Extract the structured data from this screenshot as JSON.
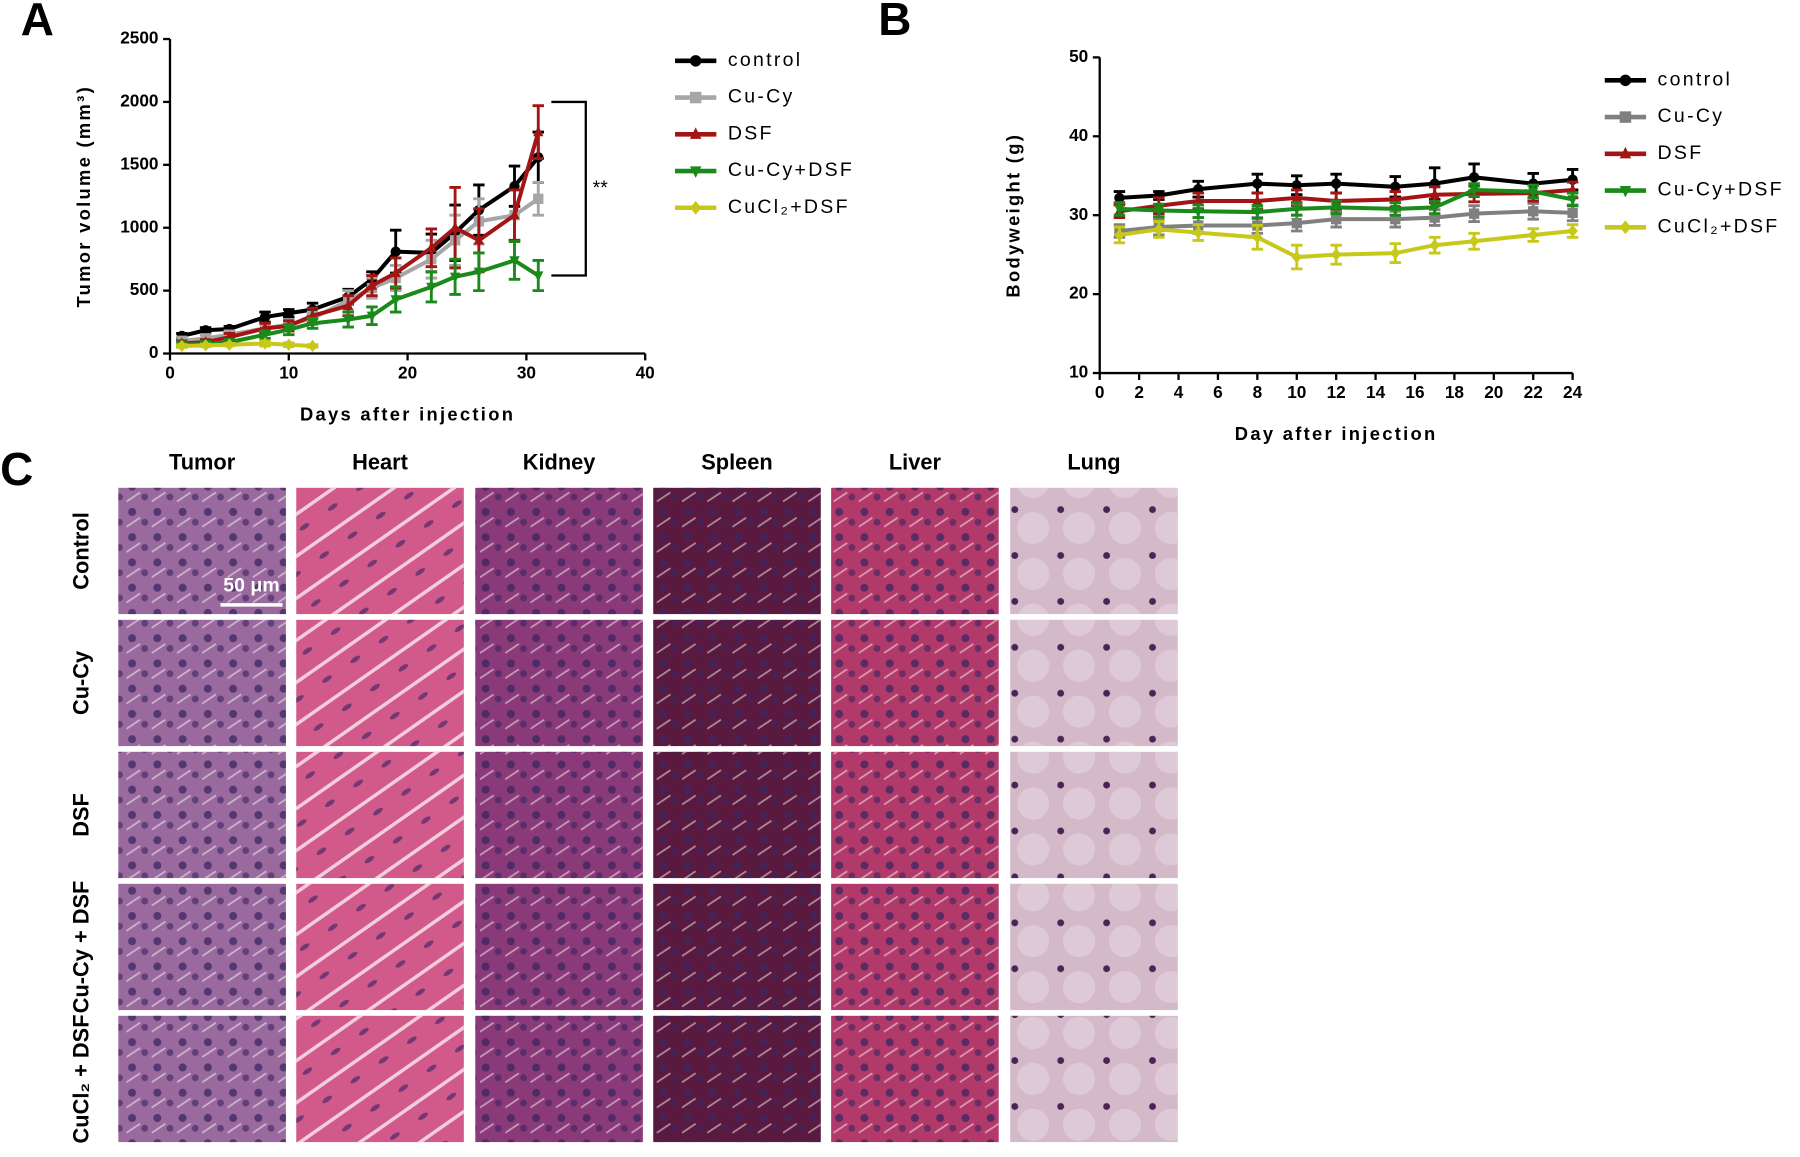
{
  "panels": [
    "A",
    "B",
    "C"
  ],
  "chart_data": [
    {
      "type": "line",
      "xlabel": "Days after injection",
      "ylabel": "Tumor volume (mm³)",
      "xlim": [
        0,
        40
      ],
      "xticks": [
        0,
        10,
        20,
        30,
        40
      ],
      "ylim": [
        0,
        2500
      ],
      "yticks": [
        0,
        500,
        1000,
        1500,
        2000,
        2500
      ],
      "annotation": "**",
      "series": [
        {
          "name": "control",
          "color": "#000000",
          "marker": "circle",
          "x": [
            1,
            3,
            5,
            8,
            10,
            12,
            15,
            17,
            19,
            22,
            24,
            26,
            29,
            31
          ],
          "values": [
            140,
            185,
            195,
            290,
            320,
            350,
            450,
            590,
            810,
            800,
            960,
            1140,
            1330,
            1560
          ],
          "errors": [
            20,
            20,
            20,
            40,
            30,
            50,
            60,
            60,
            170,
            150,
            220,
            200,
            160,
            200
          ]
        },
        {
          "name": "Cu-Cy",
          "color": "#a6a6a6",
          "marker": "square",
          "x": [
            1,
            3,
            5,
            8,
            10,
            12,
            15,
            17,
            19,
            22,
            24,
            26,
            29,
            31
          ],
          "values": [
            100,
            120,
            150,
            200,
            230,
            280,
            420,
            520,
            600,
            750,
            900,
            1050,
            1100,
            1230
          ],
          "errors": [
            30,
            30,
            30,
            40,
            40,
            50,
            80,
            80,
            100,
            150,
            200,
            180,
            200,
            130
          ]
        },
        {
          "name": "DSF",
          "color": "#a31515",
          "marker": "triangle",
          "x": [
            1,
            3,
            5,
            8,
            10,
            12,
            15,
            17,
            19,
            22,
            24,
            26,
            29,
            31
          ],
          "values": [
            80,
            90,
            130,
            200,
            220,
            300,
            380,
            540,
            640,
            840,
            1000,
            900,
            1100,
            1760
          ],
          "errors": [
            20,
            20,
            30,
            40,
            40,
            60,
            80,
            80,
            120,
            150,
            320,
            250,
            200,
            210
          ]
        },
        {
          "name": "Cu-Cy+DSF",
          "color": "#1a8a1a",
          "marker": "triangle-down",
          "x": [
            1,
            3,
            5,
            8,
            10,
            12,
            15,
            17,
            19,
            22,
            24,
            26,
            29,
            31
          ],
          "values": [
            70,
            75,
            90,
            150,
            190,
            240,
            270,
            300,
            430,
            530,
            610,
            650,
            740,
            620
          ],
          "errors": [
            20,
            20,
            20,
            30,
            40,
            40,
            60,
            70,
            100,
            120,
            140,
            150,
            150,
            120
          ]
        },
        {
          "name": "CuCl₂+DSF",
          "color": "#c8c81a",
          "marker": "diamond",
          "x": [
            1,
            3,
            5,
            8,
            10,
            12
          ],
          "values": [
            60,
            65,
            70,
            80,
            70,
            60
          ],
          "errors": [
            10,
            10,
            10,
            20,
            15,
            10
          ]
        }
      ]
    },
    {
      "type": "line",
      "xlabel": "Day after injection",
      "ylabel": "Bodyweight (g)",
      "xlim": [
        0,
        24
      ],
      "xticks": [
        0,
        2,
        4,
        6,
        8,
        10,
        12,
        14,
        16,
        18,
        20,
        22,
        24
      ],
      "ylim": [
        10,
        50
      ],
      "yticks": [
        10,
        20,
        30,
        40,
        50
      ],
      "series": [
        {
          "name": "control",
          "color": "#000000",
          "marker": "circle",
          "x": [
            1,
            3,
            5,
            8,
            10,
            12,
            15,
            17,
            19,
            22,
            24
          ],
          "values": [
            32.2,
            32.5,
            33.3,
            34.0,
            33.8,
            34.0,
            33.6,
            34.0,
            34.8,
            34.0,
            34.5
          ],
          "errors": [
            0.8,
            0.5,
            1.0,
            1.2,
            1.2,
            1.2,
            1.3,
            2.0,
            1.7,
            1.3,
            1.3
          ]
        },
        {
          "name": "Cu-Cy",
          "color": "#808080",
          "marker": "square",
          "x": [
            1,
            3,
            5,
            8,
            10,
            12,
            15,
            17,
            19,
            22,
            24
          ],
          "values": [
            28.0,
            28.5,
            28.7,
            28.7,
            29.0,
            29.5,
            29.5,
            29.7,
            30.2,
            30.5,
            30.3
          ],
          "errors": [
            0.8,
            1.0,
            1.0,
            1.0,
            1.0,
            1.0,
            1.0,
            1.0,
            1.0,
            1.0,
            1.0
          ]
        },
        {
          "name": "DSF",
          "color": "#a31515",
          "marker": "triangle",
          "x": [
            1,
            3,
            5,
            8,
            10,
            12,
            15,
            17,
            19,
            22,
            24
          ],
          "values": [
            30.5,
            31.2,
            31.8,
            31.8,
            32.2,
            31.8,
            32.0,
            32.6,
            32.7,
            32.8,
            33.2
          ],
          "errors": [
            0.8,
            1.0,
            1.0,
            1.0,
            1.0,
            1.0,
            1.0,
            1.0,
            1.0,
            1.0,
            1.0
          ]
        },
        {
          "name": "Cu-Cy+DSF",
          "color": "#1a8a1a",
          "marker": "triangle-down",
          "x": [
            1,
            3,
            5,
            8,
            10,
            12,
            15,
            17,
            19,
            22,
            24
          ],
          "values": [
            30.8,
            30.6,
            30.5,
            30.4,
            30.8,
            31.0,
            30.8,
            31.0,
            33.2,
            33.0,
            32.0
          ],
          "errors": [
            0.8,
            0.8,
            0.8,
            0.8,
            0.8,
            0.8,
            0.8,
            0.8,
            0.8,
            0.8,
            0.8
          ]
        },
        {
          "name": "CuCl₂+DSF",
          "color": "#c8c81a",
          "marker": "diamond",
          "x": [
            1,
            3,
            5,
            8,
            10,
            12,
            15,
            17,
            19,
            22,
            24
          ],
          "values": [
            27.5,
            28.2,
            27.8,
            27.2,
            24.7,
            25.0,
            25.2,
            26.2,
            26.7,
            27.5,
            28.0
          ],
          "errors": [
            1.0,
            1.0,
            1.0,
            1.5,
            1.5,
            1.2,
            1.2,
            1.0,
            1.0,
            0.8,
            0.8
          ]
        }
      ]
    }
  ],
  "histology": {
    "columns": [
      "Tumor",
      "Heart",
      "Kidney",
      "Spleen",
      "Liver",
      "Lung"
    ],
    "rows": [
      "Control",
      "Cu-Cy",
      "DSF",
      "Cu-Cy + DSF",
      "CuCl₂ + DSF"
    ],
    "scale_bar": "50 μm"
  }
}
